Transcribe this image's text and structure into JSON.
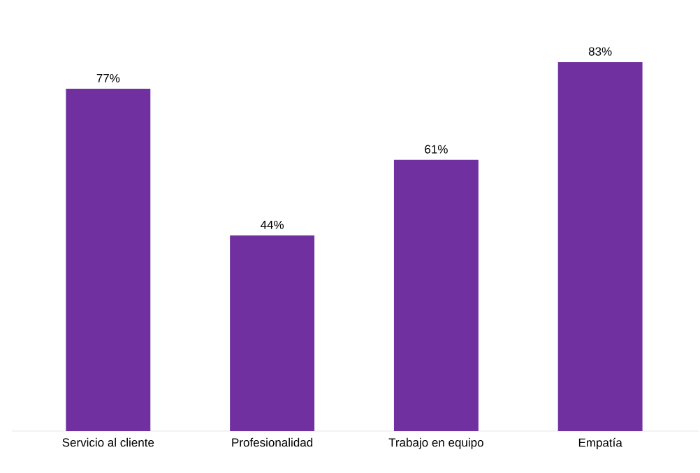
{
  "chart_data": {
    "type": "bar",
    "categories": [
      "Servicio al cliente",
      "Profesionalidad",
      "Trabajo en equipo",
      "Empatía"
    ],
    "values": [
      77,
      44,
      61,
      83
    ],
    "value_labels": [
      "77%",
      "44%",
      "61%",
      "83%"
    ],
    "color": "#7030a0"
  }
}
